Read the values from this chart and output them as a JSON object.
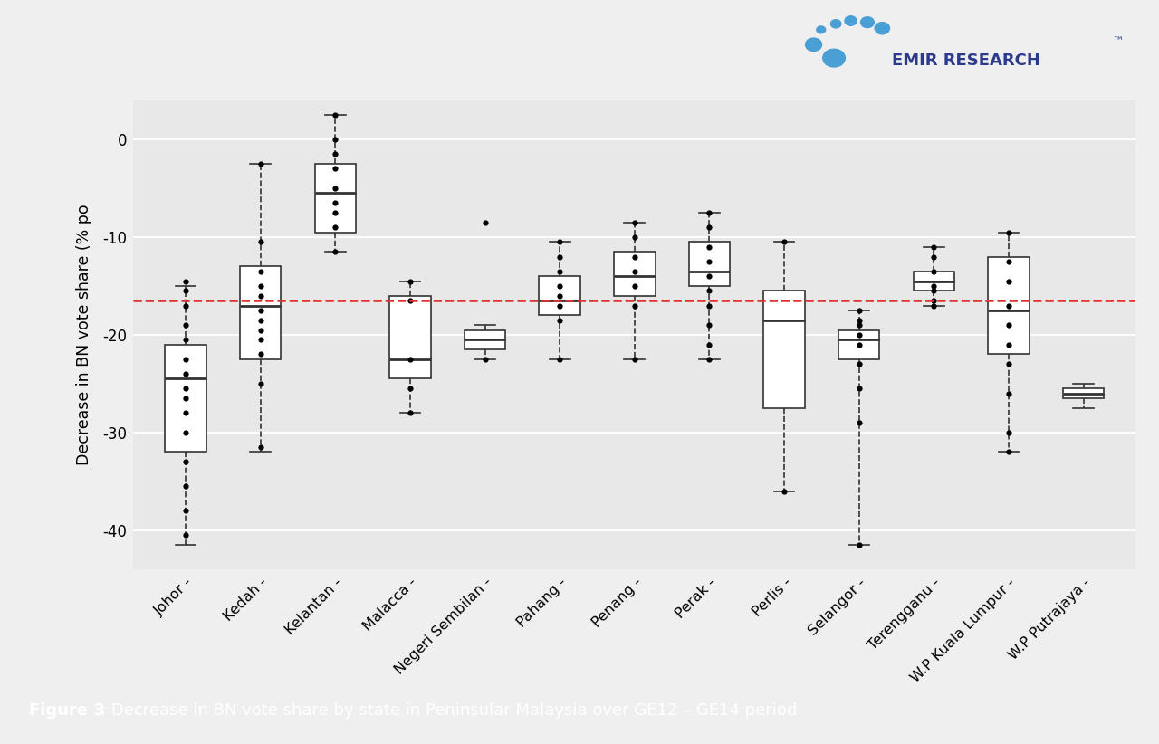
{
  "states": [
    "Johor",
    "Kedah",
    "Kelantan",
    "Malacca",
    "Negeri Sembilan",
    "Pahang",
    "Penang",
    "Perak",
    "Perlis",
    "Selangor",
    "Terengganu",
    "W.P Kuala Lumpur",
    "W.P Putrajaya"
  ],
  "box_data": {
    "Johor": {
      "whislo": -41.5,
      "q1": -32.0,
      "med": -24.5,
      "q3": -21.0,
      "whishi": -15.0,
      "fliers": [
        -15.5,
        -17.0,
        -19.0,
        -20.5,
        -22.5,
        -24.0,
        -25.5,
        -26.5,
        -28.0,
        -30.0,
        -33.0,
        -35.5,
        -38.0,
        -40.5,
        -14.5
      ]
    },
    "Kedah": {
      "whislo": -32.0,
      "q1": -22.5,
      "med": -17.0,
      "q3": -13.0,
      "whishi": -2.5,
      "fliers": [
        -2.5,
        -10.5,
        -13.5,
        -15.0,
        -16.0,
        -17.5,
        -18.5,
        -19.5,
        -20.5,
        -22.0,
        -25.0,
        -31.5
      ]
    },
    "Kelantan": {
      "whislo": -11.5,
      "q1": -9.5,
      "med": -5.5,
      "q3": -2.5,
      "whishi": 2.5,
      "fliers": [
        2.5,
        0.0,
        -1.5,
        -3.0,
        -5.0,
        -6.5,
        -7.5,
        -9.0,
        -11.5
      ]
    },
    "Malacca": {
      "whislo": -28.0,
      "q1": -24.5,
      "med": -22.5,
      "q3": -16.0,
      "whishi": -14.5,
      "fliers": [
        -14.5,
        -16.5,
        -22.5,
        -25.5,
        -28.0
      ]
    },
    "Negeri Sembilan": {
      "whislo": -22.5,
      "q1": -21.5,
      "med": -20.5,
      "q3": -19.5,
      "whishi": -19.0,
      "fliers": [
        -8.5,
        -22.5
      ]
    },
    "Pahang": {
      "whislo": -22.5,
      "q1": -18.0,
      "med": -16.5,
      "q3": -14.0,
      "whishi": -10.5,
      "fliers": [
        -10.5,
        -12.0,
        -13.5,
        -15.0,
        -16.0,
        -17.0,
        -18.5,
        -22.5
      ]
    },
    "Penang": {
      "whislo": -22.5,
      "q1": -16.0,
      "med": -14.0,
      "q3": -11.5,
      "whishi": -8.5,
      "fliers": [
        -8.5,
        -10.0,
        -12.0,
        -13.5,
        -15.0,
        -17.0,
        -22.5
      ]
    },
    "Perak": {
      "whislo": -22.5,
      "q1": -15.0,
      "med": -13.5,
      "q3": -10.5,
      "whishi": -7.5,
      "fliers": [
        -7.5,
        -9.0,
        -11.0,
        -12.5,
        -14.0,
        -15.5,
        -17.0,
        -19.0,
        -21.0,
        -22.5
      ]
    },
    "Perlis": {
      "whislo": -36.0,
      "q1": -27.5,
      "med": -18.5,
      "q3": -15.5,
      "whishi": -10.5,
      "fliers": [
        -10.5,
        -36.0
      ]
    },
    "Selangor": {
      "whislo": -41.5,
      "q1": -22.5,
      "med": -20.5,
      "q3": -19.5,
      "whishi": -17.5,
      "fliers": [
        -17.5,
        -18.5,
        -19.0,
        -20.0,
        -21.0,
        -23.0,
        -25.5,
        -29.0,
        -41.5
      ]
    },
    "Terengganu": {
      "whislo": -17.0,
      "q1": -15.5,
      "med": -14.5,
      "q3": -13.5,
      "whishi": -11.0,
      "fliers": [
        -11.0,
        -12.0,
        -13.5,
        -15.0,
        -15.5,
        -16.5,
        -17.0
      ]
    },
    "W.P Kuala Lumpur": {
      "whislo": -32.0,
      "q1": -22.0,
      "med": -17.5,
      "q3": -12.0,
      "whishi": -9.5,
      "fliers": [
        -9.5,
        -12.5,
        -14.5,
        -17.0,
        -19.0,
        -21.0,
        -23.0,
        -26.0,
        -30.0,
        -32.0
      ]
    },
    "W.P Putrajaya": {
      "whislo": -27.5,
      "q1": -26.5,
      "med": -26.0,
      "q3": -25.5,
      "whishi": -25.0,
      "fliers": []
    }
  },
  "reference_line_y": -16.5,
  "ylabel": "Decrease in BN vote share (% po",
  "ylim": [
    -44,
    4
  ],
  "yticks": [
    0,
    -10,
    -20,
    -30,
    -40
  ],
  "plot_bg": "#E8E8E8",
  "fig_bg": "#EFEFEF",
  "box_facecolor": "white",
  "box_edgecolor": "#333333",
  "median_color": "#333333",
  "whisker_color": "#333333",
  "flier_color": "#000000",
  "ref_color": "#E03030",
  "caption_bg": "#1B3F7A",
  "caption_bold": "Figure 3",
  "caption_rest": ": Decrease in BN vote share by state in Peninsular Malaysia over GE12 – GE14 period",
  "logo_text": "EMIR RESEARCH",
  "logo_color": "#2B3A8C",
  "logo_circle_color": "#4A9FD4"
}
